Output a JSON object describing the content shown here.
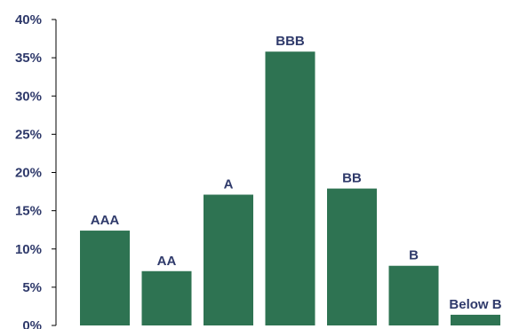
{
  "chart_data": {
    "type": "bar",
    "categories": [
      "AAA",
      "AA",
      "A",
      "BBB",
      "BB",
      "B",
      "Below B"
    ],
    "values": [
      12.4,
      7.1,
      17.1,
      35.8,
      17.9,
      7.8,
      1.4
    ],
    "ylim": [
      0,
      40
    ],
    "yticks": [
      "0%",
      "5%",
      "10%",
      "15%",
      "20%",
      "25%",
      "30%",
      "35%",
      "40%"
    ],
    "ytick_values": [
      0,
      5,
      10,
      15,
      20,
      25,
      30,
      35,
      40
    ],
    "xlabel": "",
    "ylabel": "",
    "grid": false,
    "legend": "none",
    "colors": {
      "bar": "#2e7352",
      "text": "#2f3a6b",
      "axis": "#000000"
    }
  }
}
